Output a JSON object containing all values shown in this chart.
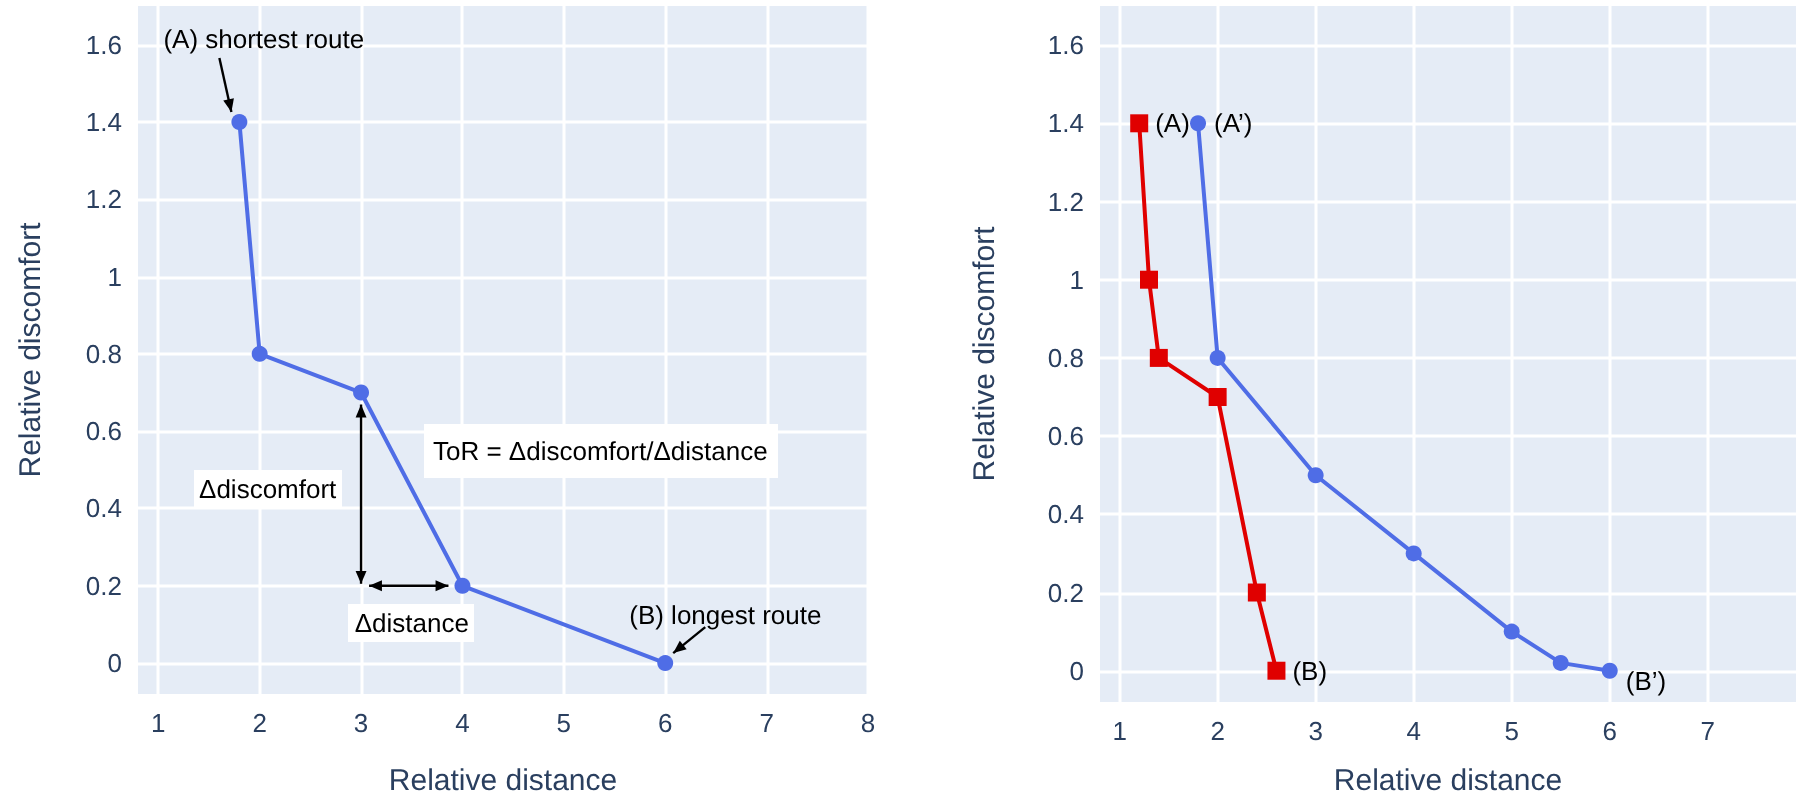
{
  "chart_data": [
    {
      "type": "line",
      "xlabel": "Relative distance",
      "ylabel": "Relative discomfort",
      "x": [
        1.8,
        2,
        3,
        4,
        6
      ],
      "series": [
        {
          "color": "#4f6de6",
          "marker": "circle",
          "values": [
            1.4,
            0.8,
            0.7,
            0.2,
            0
          ]
        }
      ],
      "xlim": [
        0.8,
        8
      ],
      "ylim": [
        -0.08,
        1.7
      ],
      "xticks": [
        1,
        2,
        3,
        4,
        5,
        6,
        7,
        8
      ],
      "yticks": [
        0,
        0.2,
        0.4,
        0.6,
        0.8,
        1,
        1.2,
        1.4,
        1.6
      ],
      "grid": true,
      "annotations": [
        {
          "text": "(A) shortest route",
          "x": 1.8,
          "y": 1.4
        },
        {
          "text": "(B) longest route",
          "x": 6,
          "y": 0
        },
        "Δdiscomfort",
        {
          "text": "Δdistance",
          "x": 4,
          "y": 0.2
        },
        "ToR = Δdiscomfort/Δdistance"
      ]
    },
    {
      "type": "line",
      "xlabel": "Relative distance",
      "ylabel": "Relative discomfort",
      "series": [
        {
          "color": "#e00000",
          "marker": "square",
          "x": [
            1.2,
            1.3,
            1.4,
            2,
            2.4,
            2.6
          ],
          "values": [
            1.4,
            1,
            0.8,
            0.7,
            0.2,
            0
          ]
        },
        {
          "color": "#4f6de6",
          "marker": "circle",
          "x": [
            1.8,
            2,
            3,
            4,
            5,
            5.5,
            6
          ],
          "values": [
            1.4,
            0.8,
            0.5,
            0.3,
            0.1,
            0.02,
            0
          ]
        }
      ],
      "xlim": [
        0.8,
        7.9
      ],
      "ylim": [
        -0.08,
        1.7
      ],
      "xticks": [
        1,
        2,
        3,
        4,
        5,
        6,
        7
      ],
      "yticks": [
        0,
        0.2,
        0.4,
        0.6,
        0.8,
        1,
        1.2,
        1.4,
        1.6
      ],
      "grid": true,
      "annotations": [
        {
          "text": "(A)",
          "x": 1.2,
          "y": 1.4
        },
        {
          "text": "(A’)",
          "x": 1.8,
          "y": 1.4
        },
        {
          "text": "(B)",
          "x": 2.6,
          "y": 0
        },
        {
          "text": "(B’)",
          "x": 6,
          "y": 0
        }
      ]
    }
  ]
}
